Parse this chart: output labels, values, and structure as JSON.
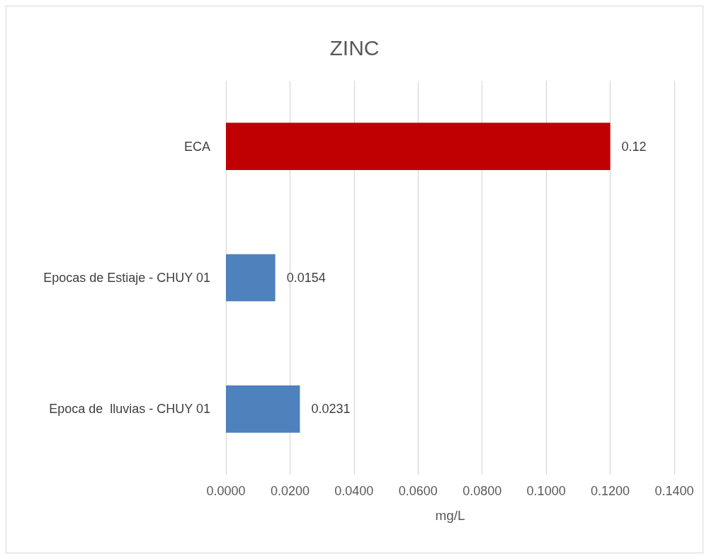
{
  "chart_data": {
    "type": "bar",
    "orientation": "horizontal",
    "title": "ZINC",
    "xlabel": "mg/L",
    "categories": [
      "ECA",
      "Epocas de Estiaje - CHUY 01",
      "Epoca de  lluvias - CHUY 01"
    ],
    "values": [
      0.12,
      0.0154,
      0.0231
    ],
    "colors": [
      "#c00000",
      "#4f81bd",
      "#4f81bd"
    ],
    "xlim": [
      0,
      0.14
    ],
    "xticks": [
      {
        "value": 0,
        "label": "0.0000"
      },
      {
        "value": 0.02,
        "label": "0.0200"
      },
      {
        "value": 0.04,
        "label": "0.0400"
      },
      {
        "value": 0.06,
        "label": "0.0600"
      },
      {
        "value": 0.08,
        "label": "0.0800"
      },
      {
        "value": 0.1,
        "label": "0.1000"
      },
      {
        "value": 0.12,
        "label": "0.1200"
      },
      {
        "value": 0.14,
        "label": "0.1400"
      }
    ],
    "grid": "x",
    "data_labels": true
  }
}
